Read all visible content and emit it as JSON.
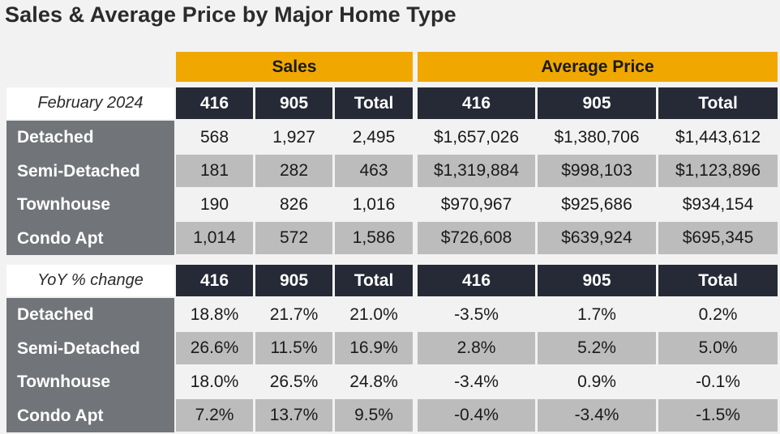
{
  "title": "Sales & Average Price by Major Home Type",
  "groups": {
    "sales": "Sales",
    "avg_price": "Average Price"
  },
  "columns": [
    "416",
    "905",
    "Total",
    "416",
    "905",
    "Total"
  ],
  "row_types": [
    "Detached",
    "Semi-Detached",
    "Townhouse",
    "Condo Apt"
  ],
  "table1": {
    "period_label": "February 2024",
    "rows": [
      [
        "568",
        "1,927",
        "2,495",
        "$1,657,026",
        "$1,380,706",
        "$1,443,612"
      ],
      [
        "181",
        "282",
        "463",
        "$1,319,884",
        "$998,103",
        "$1,123,896"
      ],
      [
        "190",
        "826",
        "1,016",
        "$970,967",
        "$925,686",
        "$934,154"
      ],
      [
        "1,014",
        "572",
        "1,586",
        "$726,608",
        "$639,924",
        "$695,345"
      ]
    ]
  },
  "table2": {
    "period_label": "YoY % change",
    "rows": [
      [
        "18.8%",
        "21.7%",
        "21.0%",
        "-3.5%",
        "1.7%",
        "0.2%"
      ],
      [
        "26.6%",
        "11.5%",
        "16.9%",
        "2.8%",
        "5.2%",
        "5.0%"
      ],
      [
        "18.0%",
        "26.5%",
        "24.8%",
        "-3.4%",
        "0.9%",
        "-0.1%"
      ],
      [
        "7.2%",
        "13.7%",
        "9.5%",
        "-0.4%",
        "-3.4%",
        "-1.5%"
      ]
    ]
  },
  "colors": {
    "group_header": "#f0a800",
    "column_header": "#262a36",
    "row_label": "#717478",
    "row_light": "#f2f2f2",
    "row_dark": "#bcbcbc"
  }
}
